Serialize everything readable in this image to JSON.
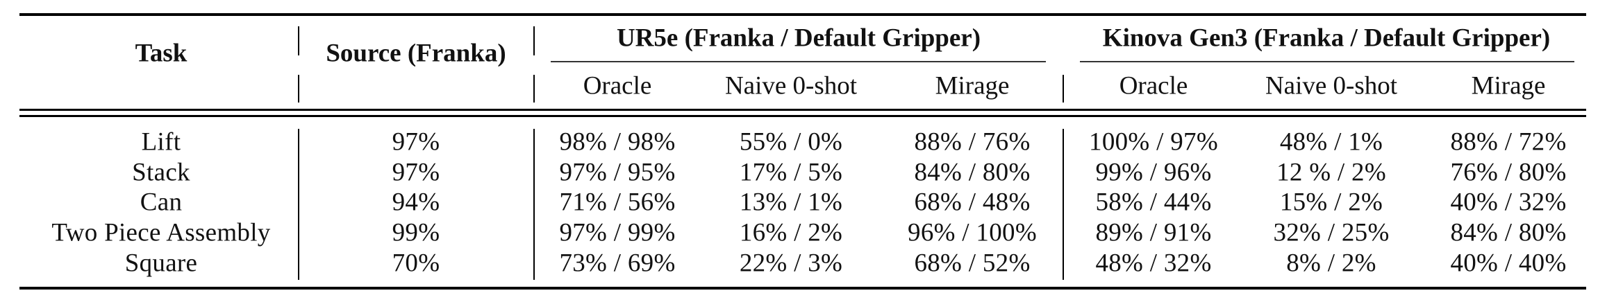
{
  "header": {
    "task": "Task",
    "source": "Source (Franka)",
    "group1": "UR5e (Franka / Default Gripper)",
    "group2": "Kinova Gen3 (Franka / Default Gripper)",
    "sub": [
      "Oracle",
      "Naive 0-shot",
      "Mirage"
    ]
  },
  "rows": [
    {
      "task": "Lift",
      "source": "97%",
      "ur5e": [
        "98% / 98%",
        "55% / 0%",
        "88% / 76%"
      ],
      "kinova": [
        "100% / 97%",
        "48% / 1%",
        "88% / 72%"
      ]
    },
    {
      "task": "Stack",
      "source": "97%",
      "ur5e": [
        "97% / 95%",
        "17% / 5%",
        "84% / 80%"
      ],
      "kinova": [
        "99% / 96%",
        "12 % / 2%",
        "76% / 80%"
      ]
    },
    {
      "task": "Can",
      "source": "94%",
      "ur5e": [
        "71% / 56%",
        "13% / 1%",
        "68% / 48%"
      ],
      "kinova": [
        "58% / 44%",
        "15% / 2%",
        "40% / 32%"
      ]
    },
    {
      "task": "Two Piece Assembly",
      "source": "99%",
      "ur5e": [
        "97% / 99%",
        "16% / 2%",
        "96% / 100%"
      ],
      "kinova": [
        "89% / 91%",
        "32% / 25%",
        "84% / 80%"
      ]
    },
    {
      "task": "Square",
      "source": "70%",
      "ur5e": [
        "73% / 69%",
        "22% / 3%",
        "68% / 52%"
      ],
      "kinova": [
        "48% / 32%",
        "8% / 2%",
        "40% / 40%"
      ]
    }
  ]
}
